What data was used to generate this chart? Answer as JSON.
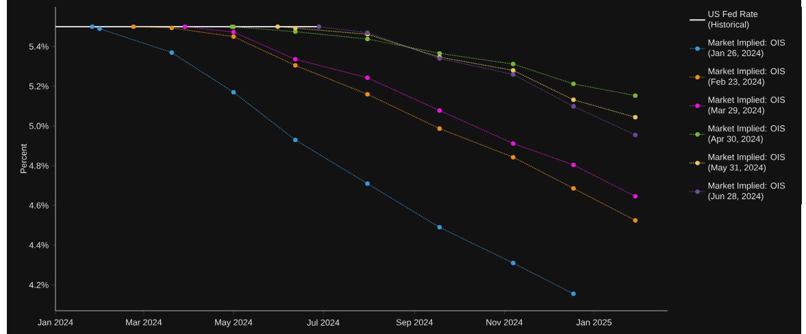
{
  "chart_data": {
    "type": "line",
    "ylabel": "Percent",
    "xlim": [
      "2024-01-01",
      "2025-02-20"
    ],
    "ylim": [
      4.07,
      5.6
    ],
    "xticks": [
      {
        "value": "2024-01-01",
        "label": "Jan 2024"
      },
      {
        "value": "2024-03-01",
        "label": "Mar 2024"
      },
      {
        "value": "2024-05-01",
        "label": "May 2024"
      },
      {
        "value": "2024-07-01",
        "label": "Jul 2024"
      },
      {
        "value": "2024-09-01",
        "label": "Sep 2024"
      },
      {
        "value": "2024-11-01",
        "label": "Nov 2024"
      },
      {
        "value": "2025-01-01",
        "label": "Jan 2025"
      }
    ],
    "yticks": [
      {
        "value": 4.2,
        "label": "4.2%"
      },
      {
        "value": 4.4,
        "label": "4.4%"
      },
      {
        "value": 4.6,
        "label": "4.6%"
      },
      {
        "value": 4.8,
        "label": "4.8%"
      },
      {
        "value": 5.0,
        "label": "5.0%"
      },
      {
        "value": 5.2,
        "label": "5.2%"
      },
      {
        "value": 5.4,
        "label": "5.4%"
      }
    ],
    "legend": "right",
    "marker": "circle",
    "line_style": "dotted",
    "series": [
      {
        "name": "US Fed Rate (Historical)",
        "color": "#d9d9d9",
        "marker": "none",
        "line_style": "solid",
        "x": [
          "2024-01-01",
          "2024-06-28"
        ],
        "values": [
          5.5,
          5.5
        ]
      },
      {
        "name": "Market Implied: OIS (Jan 26, 2024)",
        "color": "#3a9ad9",
        "x": [
          "2024-01-26",
          "2024-01-31",
          "2024-03-20",
          "2024-05-01",
          "2024-06-12",
          "2024-07-31",
          "2024-09-18",
          "2024-11-07",
          "2024-12-18"
        ],
        "values": [
          5.5,
          5.49,
          5.37,
          5.17,
          4.93,
          4.71,
          4.49,
          4.31,
          4.155
        ]
      },
      {
        "name": "Market Implied: OIS (Feb 23, 2024)",
        "color": "#e8901a",
        "x": [
          "2024-02-23",
          "2024-03-20",
          "2024-05-01",
          "2024-06-12",
          "2024-07-31",
          "2024-09-18",
          "2024-11-07",
          "2024-12-18",
          "2025-01-29"
        ],
        "values": [
          5.5,
          5.494,
          5.45,
          5.305,
          5.16,
          4.987,
          4.843,
          4.686,
          4.525
        ]
      },
      {
        "name": "Market Implied: OIS (Mar 29, 2024)",
        "color": "#e619d8",
        "x": [
          "2024-03-29",
          "2024-05-01",
          "2024-06-12",
          "2024-07-31",
          "2024-09-18",
          "2024-11-07",
          "2024-12-18",
          "2025-01-29"
        ],
        "values": [
          5.5,
          5.473,
          5.336,
          5.243,
          5.078,
          4.912,
          4.804,
          4.646
        ]
      },
      {
        "name": "Market Implied: OIS (Apr 30, 2024)",
        "color": "#7ab83a",
        "x": [
          "2024-04-30",
          "2024-05-01",
          "2024-06-12",
          "2024-07-31",
          "2024-09-18",
          "2024-11-07",
          "2024-12-18",
          "2025-01-29"
        ],
        "values": [
          5.5,
          5.499,
          5.475,
          5.438,
          5.366,
          5.312,
          5.212,
          5.153
        ]
      },
      {
        "name": "Market Implied: OIS (May 31, 2024)",
        "color": "#e6c860",
        "x": [
          "2024-05-31",
          "2024-06-12",
          "2024-07-31",
          "2024-09-18",
          "2024-11-07",
          "2024-12-18",
          "2025-01-29"
        ],
        "values": [
          5.5,
          5.493,
          5.462,
          5.347,
          5.28,
          5.132,
          5.044
        ]
      },
      {
        "name": "Market Implied: OIS (Jun 28, 2024)",
        "color": "#6b4c9a",
        "x": [
          "2024-06-28",
          "2024-07-31",
          "2024-09-18",
          "2024-11-07",
          "2024-12-18",
          "2025-01-29"
        ],
        "values": [
          5.5,
          5.47,
          5.34,
          5.26,
          5.099,
          4.955
        ]
      }
    ]
  }
}
